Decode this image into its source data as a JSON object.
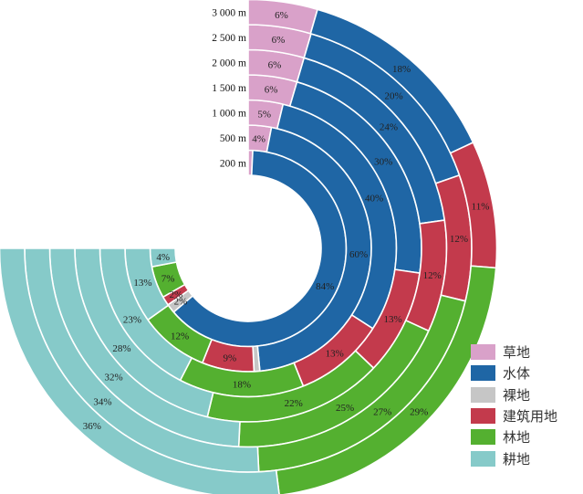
{
  "chart_data": {
    "type": "nested-donut",
    "categories": [
      "草地",
      "水体",
      "裸地",
      "建筑用地",
      "林地",
      "耕地"
    ],
    "colors": [
      "#d9a1c9",
      "#1f66a5",
      "#c6c6c6",
      "#c33a4c",
      "#54b030",
      "#86cac9"
    ],
    "rings": [
      {
        "label": "200 m",
        "values": [
          1,
          84,
          2,
          2,
          7,
          4
        ],
        "value_labels": [
          "",
          "84%",
          "2%",
          "2%",
          "7%",
          "4%"
        ]
      },
      {
        "label": "500 m",
        "values": [
          4,
          60,
          1,
          9,
          12,
          13
        ],
        "value_labels": [
          "4%",
          "60%",
          "",
          "9%",
          "12%",
          "13%"
        ]
      },
      {
        "label": "1 000 m",
        "values": [
          5,
          40,
          0,
          13,
          18,
          23
        ],
        "value_labels": [
          "5%",
          "40%",
          "",
          "13%",
          "18%",
          "23%"
        ]
      },
      {
        "label": "1 500 m",
        "values": [
          6,
          30,
          0,
          13,
          22,
          28
        ],
        "value_labels": [
          "6%",
          "30%",
          "",
          "13%",
          "22%",
          "28%"
        ]
      },
      {
        "label": "2 000 m",
        "values": [
          6,
          24,
          0,
          12,
          25,
          32
        ],
        "value_labels": [
          "6%",
          "24%",
          "",
          "12%",
          "25%",
          "32%"
        ]
      },
      {
        "label": "2 500 m",
        "values": [
          6,
          20,
          0,
          12,
          27,
          34
        ],
        "value_labels": [
          "6%",
          "20%",
          "",
          "12%",
          "27%",
          "34%"
        ]
      },
      {
        "label": "3 000 m",
        "values": [
          6,
          18,
          0,
          11,
          29,
          36
        ],
        "value_labels": [
          "6%",
          "18%",
          "",
          "11%",
          "29%",
          "36%"
        ]
      }
    ],
    "legend_position": "bottom-right"
  },
  "legend": {
    "items": [
      {
        "label": "草地",
        "color": "#d9a1c9"
      },
      {
        "label": "水体",
        "color": "#1f66a5"
      },
      {
        "label": "裸地",
        "color": "#c6c6c6"
      },
      {
        "label": "建筑用地",
        "color": "#c33a4c"
      },
      {
        "label": "林地",
        "color": "#54b030"
      },
      {
        "label": "耕地",
        "color": "#86cac9"
      }
    ]
  }
}
